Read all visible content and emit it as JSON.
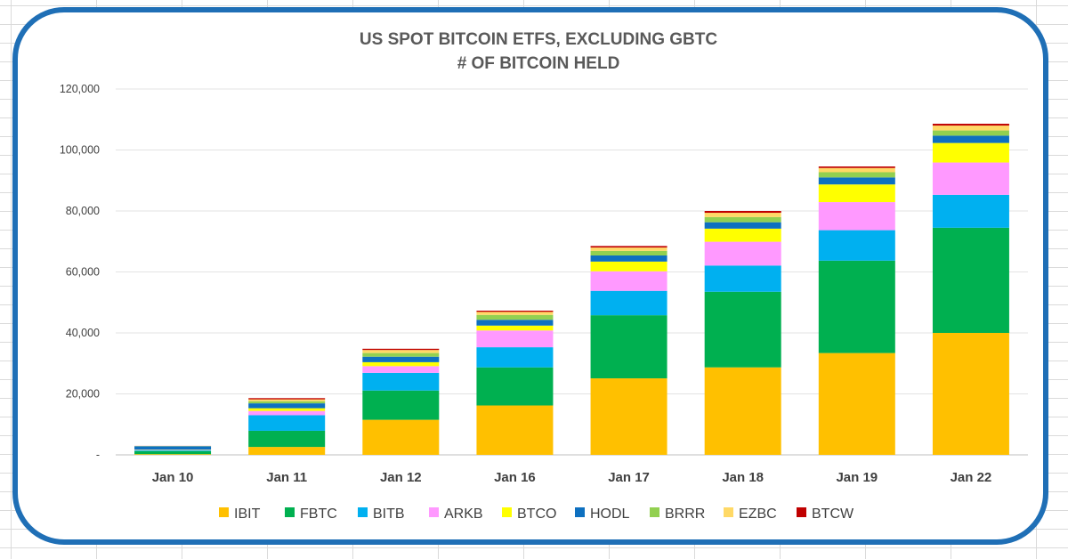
{
  "chart_data": {
    "type": "bar",
    "stacked": true,
    "title": [
      "US SPOT BITCOIN ETFS, EXCLUDING GBTC",
      "# OF BITCOIN HELD"
    ],
    "xlabel": "",
    "ylabel": "",
    "ylim": [
      0,
      120000
    ],
    "yticks": [
      0,
      20000,
      40000,
      60000,
      80000,
      100000,
      120000
    ],
    "ytick_labels": [
      "-",
      "20,000",
      "40,000",
      "60,000",
      "80,000",
      "100,000",
      "120,000"
    ],
    "grid": true,
    "legend_position": "bottom",
    "categories": [
      "Jan 10",
      "Jan 11",
      "Jan 12",
      "Jan 16",
      "Jan 17",
      "Jan 18",
      "Jan 19",
      "Jan 22"
    ],
    "series": [
      {
        "name": "IBIT",
        "color": "#ffc000",
        "values": [
          230,
          2600,
          11500,
          16200,
          25100,
          28700,
          33400,
          40000
        ]
      },
      {
        "name": "FBTC",
        "color": "#00b050",
        "values": [
          1000,
          5300,
          9600,
          12500,
          20700,
          24800,
          30300,
          34500
        ]
      },
      {
        "name": "BITB",
        "color": "#00b0f0",
        "values": [
          300,
          5100,
          5800,
          6600,
          8000,
          8600,
          10000,
          10800
        ]
      },
      {
        "name": "ARKB",
        "color": "#ff99ff",
        "values": [
          100,
          1400,
          2200,
          5500,
          6400,
          7800,
          9200,
          10600
        ]
      },
      {
        "name": "BTCO",
        "color": "#ffff00",
        "values": [
          100,
          900,
          1300,
          1600,
          3200,
          4300,
          5800,
          6400
        ]
      },
      {
        "name": "HODL",
        "color": "#0e70c0",
        "values": [
          1100,
          1600,
          1800,
          1900,
          2000,
          2100,
          2300,
          2400
        ]
      },
      {
        "name": "BRRR",
        "color": "#92d050",
        "values": [
          50,
          700,
          1200,
          1600,
          1500,
          1700,
          1700,
          1700
        ]
      },
      {
        "name": "EZBC",
        "color": "#ffd966",
        "values": [
          50,
          600,
          1000,
          1000,
          1100,
          1400,
          1400,
          1600
        ]
      },
      {
        "name": "BTCW",
        "color": "#c00000",
        "values": [
          20,
          400,
          400,
          400,
          500,
          600,
          500,
          600
        ]
      }
    ]
  }
}
